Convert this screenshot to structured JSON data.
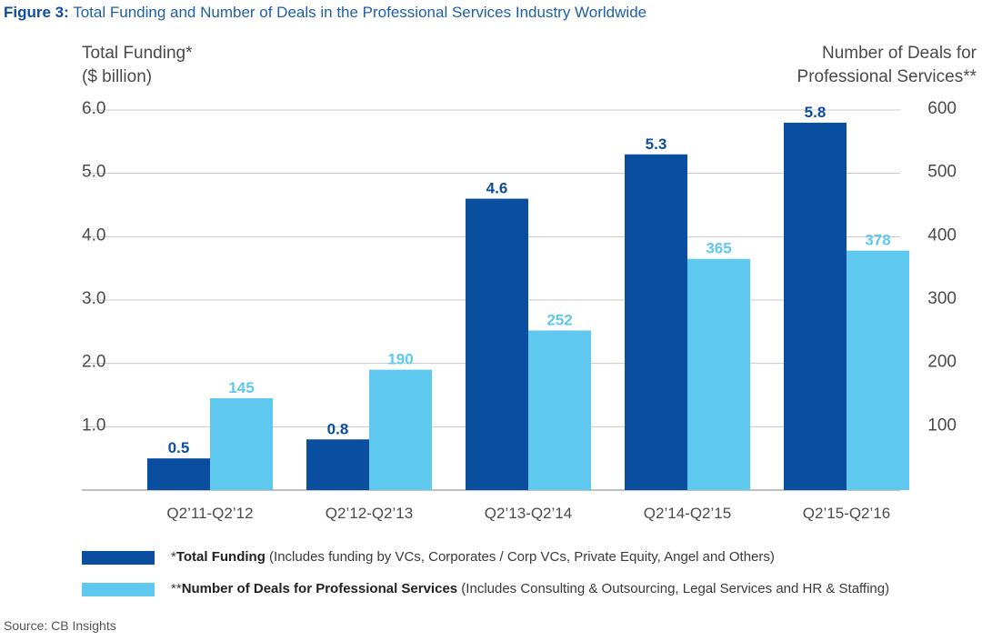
{
  "title": {
    "lead": "Figure 3:",
    "text": "Total Funding and Number of Deals in the Professional Services Industry Worldwide"
  },
  "colors": {
    "funding": "#0a4ea0",
    "deals": "#5ec8ee",
    "grid": "#c8c8c8",
    "label_funding": "#0d4ea0",
    "label_deals": "#5ec8ee"
  },
  "chart_data": {
    "type": "bar",
    "categories": [
      "Q2’11-Q2’12",
      "Q2’12-Q2’13",
      "Q2’13-Q2’14",
      "Q2’14-Q2’15",
      "Q2’15-Q2’16"
    ],
    "series": [
      {
        "name": "Total Funding",
        "axis": "left",
        "values": [
          0.5,
          0.8,
          4.6,
          5.3,
          5.8
        ],
        "labels": [
          "0.5",
          "0.8",
          "4.6",
          "5.3",
          "5.8"
        ]
      },
      {
        "name": "Number of Deals for Professional Services",
        "axis": "right",
        "values": [
          145,
          190,
          252,
          365,
          378
        ],
        "labels": [
          "145",
          "190",
          "252",
          "365",
          "378"
        ]
      }
    ],
    "left_axis": {
      "title_line1": "Total Funding*",
      "title_line2": "($ billion)",
      "range": [
        0,
        6.0
      ],
      "ticks": [
        1.0,
        2.0,
        3.0,
        4.0,
        5.0,
        6.0
      ],
      "tick_labels": [
        "1.0",
        "2.0",
        "3.0",
        "4.0",
        "5.0",
        "6.0"
      ]
    },
    "right_axis": {
      "title_line1": "Number of Deals for",
      "title_line2": "Professional Services**",
      "range": [
        0,
        600
      ],
      "ticks": [
        100,
        200,
        300,
        400,
        500,
        600
      ],
      "tick_labels": [
        "100",
        "200",
        "300",
        "400",
        "500",
        "600"
      ]
    },
    "grid": true
  },
  "legend": {
    "funding": {
      "prefix": "*",
      "bold": "Total Funding",
      "rest": " (Includes funding by VCs, Corporates / Corp VCs, Private Equity, Angel and Others)"
    },
    "deals": {
      "prefix": "**",
      "bold": "Number of Deals for Professional Services",
      "rest": " (Includes Consulting & Outsourcing, Legal Services and HR & Staffing)"
    }
  },
  "source": "Source:  CB Insights"
}
